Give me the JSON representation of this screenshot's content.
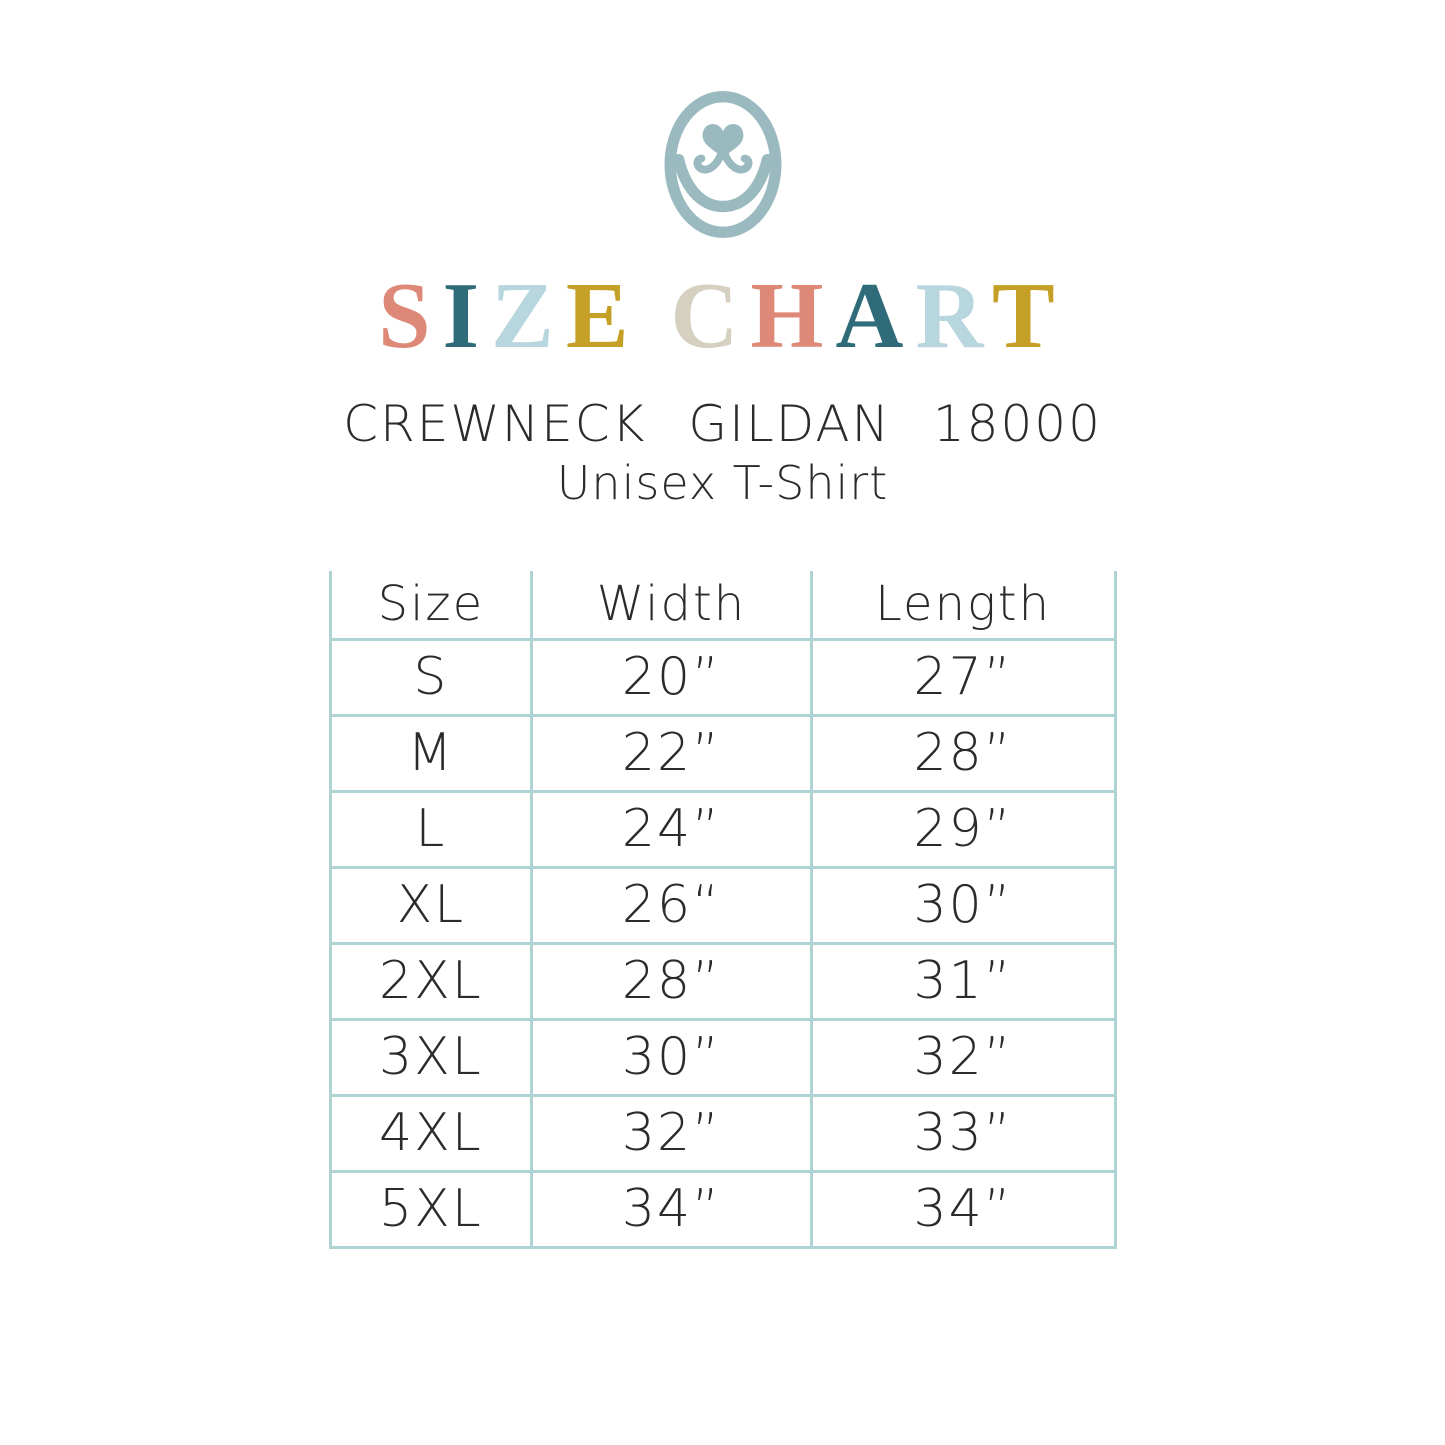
{
  "colors": {
    "background": "#ffffff",
    "ink": "#2b2b2b",
    "table_border": "#afd2d3",
    "logo": "#9ababf",
    "salmon": "#de8877",
    "dark_teal": "#2f6b78",
    "light_blue": "#b7d6dd",
    "mustard": "#c5a026",
    "beige": "#d5d0c0"
  },
  "logo": {
    "name": "heart-smile-logo"
  },
  "title": {
    "text": "SIZE CHART",
    "letters": [
      {
        "char": "S",
        "color": "#de8877"
      },
      {
        "char": "I",
        "color": "#2f6b78"
      },
      {
        "char": "Z",
        "color": "#b7d6dd"
      },
      {
        "char": "E",
        "color": "#c5a026"
      },
      {
        "char": " "
      },
      {
        "char": "C",
        "color": "#d5d0c0"
      },
      {
        "char": "H",
        "color": "#de8877"
      },
      {
        "char": "A",
        "color": "#2f6b78"
      },
      {
        "char": "R",
        "color": "#b7d6dd"
      },
      {
        "char": "T",
        "color": "#c5a026"
      }
    ]
  },
  "subtitle": {
    "line1": "CREWNECK GILDAN 18000",
    "line2": "Unisex T-Shirt"
  },
  "chart_data": {
    "type": "table",
    "title": "SIZE CHART",
    "subtitle": "CREWNECK GILDAN 18000 Unisex T-Shirt",
    "columns": [
      "Size",
      "Width",
      "Length"
    ],
    "rows": [
      [
        "S",
        "20”",
        "27”"
      ],
      [
        "M",
        "22”",
        "28”"
      ],
      [
        "L",
        "24”",
        "29”"
      ],
      [
        "XL",
        "26“",
        "30”"
      ],
      [
        "2XL",
        "28”",
        "31”"
      ],
      [
        "3XL",
        "30”",
        "32”"
      ],
      [
        "4XL",
        "32”",
        "33”"
      ],
      [
        "5XL",
        "34”",
        "34”"
      ]
    ]
  }
}
